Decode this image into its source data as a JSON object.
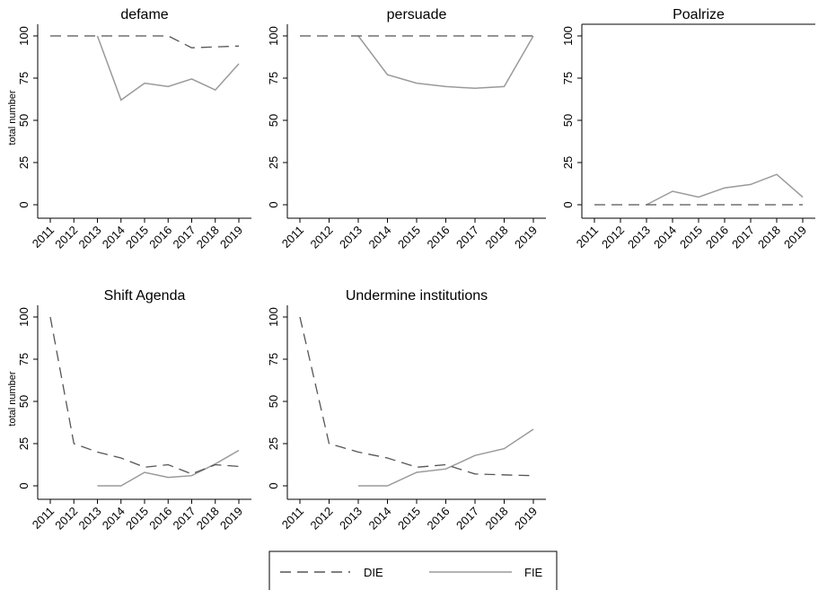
{
  "chart_data": [
    {
      "type": "line",
      "title": "defame",
      "ylabel": "total number",
      "x": [
        "2011",
        "2012",
        "2013",
        "2014",
        "2015",
        "2016",
        "2017",
        "2018",
        "2019"
      ],
      "yticks": [
        0,
        25,
        50,
        75,
        100
      ],
      "ylim": [
        0,
        100
      ],
      "series": [
        {
          "name": "DIE",
          "values": [
            100,
            100,
            100,
            100,
            100,
            100,
            93,
            93.5,
            94
          ]
        },
        {
          "name": "FIE",
          "values": [
            null,
            null,
            100,
            62,
            72,
            70,
            74.5,
            68,
            83.5
          ]
        }
      ]
    },
    {
      "type": "line",
      "title": "persuade",
      "ylabel": "",
      "x": [
        "2011",
        "2012",
        "2013",
        "2014",
        "2015",
        "2016",
        "2017",
        "2018",
        "2019"
      ],
      "yticks": [
        0,
        25,
        50,
        75,
        100
      ],
      "ylim": [
        0,
        100
      ],
      "series": [
        {
          "name": "DIE",
          "values": [
            100,
            100,
            100,
            100,
            100,
            100,
            100,
            100,
            100
          ]
        },
        {
          "name": "FIE",
          "values": [
            null,
            null,
            100,
            77,
            72,
            70,
            69,
            70,
            100
          ]
        }
      ]
    },
    {
      "type": "line",
      "title": "Poalrize",
      "ylabel": "",
      "x": [
        "2011",
        "2012",
        "2013",
        "2014",
        "2015",
        "2016",
        "2017",
        "2018",
        "2019"
      ],
      "yticks": [
        0,
        25,
        50,
        75,
        100
      ],
      "ylim": [
        0,
        100
      ],
      "series": [
        {
          "name": "DIE",
          "values": [
            0,
            0,
            0,
            0,
            0,
            0,
            0,
            0,
            0
          ]
        },
        {
          "name": "FIE",
          "values": [
            null,
            null,
            0,
            8,
            4.5,
            10,
            12,
            18,
            4.5
          ]
        }
      ]
    },
    {
      "type": "line",
      "title": "Shift Agenda",
      "ylabel": "total number",
      "x": [
        "2011",
        "2012",
        "2013",
        "2014",
        "2015",
        "2016",
        "2017",
        "2018",
        "2019"
      ],
      "yticks": [
        0,
        25,
        50,
        75,
        100
      ],
      "ylim": [
        0,
        100
      ],
      "series": [
        {
          "name": "DIE",
          "values": [
            100,
            25,
            20,
            16.5,
            11,
            12.5,
            7,
            12.5,
            11.5
          ]
        },
        {
          "name": "FIE",
          "values": [
            null,
            null,
            0,
            0,
            8,
            5,
            6,
            13,
            21
          ]
        }
      ]
    },
    {
      "type": "line",
      "title": "Undermine institutions",
      "ylabel": "",
      "x": [
        "2011",
        "2012",
        "2013",
        "2014",
        "2015",
        "2016",
        "2017",
        "2018",
        "2019"
      ],
      "yticks": [
        0,
        25,
        50,
        75,
        100
      ],
      "ylim": [
        0,
        100
      ],
      "series": [
        {
          "name": "DIE",
          "values": [
            100,
            25,
            20,
            16.5,
            11,
            12.5,
            7,
            6.5,
            6
          ]
        },
        {
          "name": "FIE",
          "values": [
            null,
            null,
            0,
            0,
            8,
            10,
            18,
            22,
            33.5
          ]
        }
      ]
    }
  ],
  "legend": {
    "position": "bottom",
    "items": [
      {
        "label": "DIE",
        "style": "dashed",
        "color": "#555555"
      },
      {
        "label": "FIE",
        "style": "solid",
        "color": "#9a9a9a"
      }
    ]
  },
  "colors": {
    "DIE": "#555555",
    "FIE": "#9a9a9a",
    "axis": "#000000"
  }
}
